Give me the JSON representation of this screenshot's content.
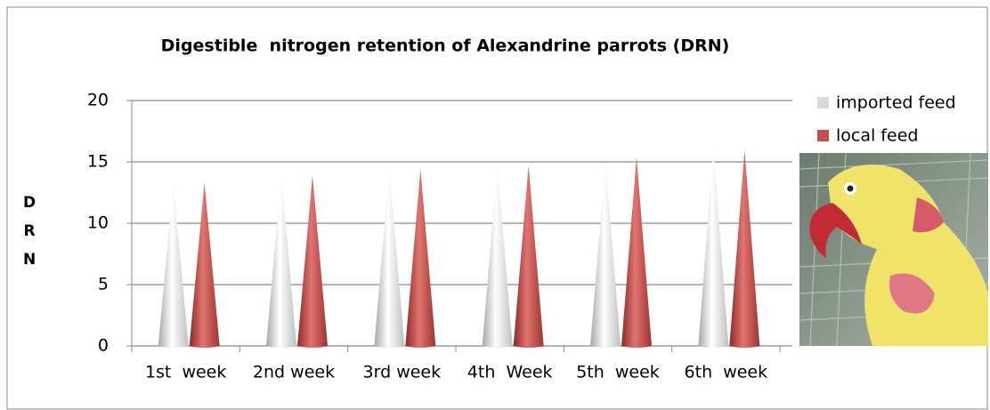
{
  "chart_data": {
    "type": "bar",
    "title": "Digestible  nitrogen retention of Alexandrine parrots (DRN)",
    "y_label": "DRN",
    "categories": [
      "1st  week",
      "2nd week",
      "3rd week",
      "4th  Week",
      "5th  week",
      "6th  week"
    ],
    "series": [
      {
        "name": "imported feed",
        "color": "#d9d9d9",
        "values": [
          13.3,
          14.0,
          14.5,
          14.8,
          15.1,
          16.1
        ]
      },
      {
        "name": "local feed",
        "color": "#c0504d",
        "values": [
          13.3,
          13.9,
          14.4,
          14.7,
          15.4,
          16.0
        ]
      }
    ],
    "ylim": [
      0,
      20
    ],
    "yticks": [
      0,
      5,
      10,
      15,
      20
    ],
    "grid": true
  }
}
